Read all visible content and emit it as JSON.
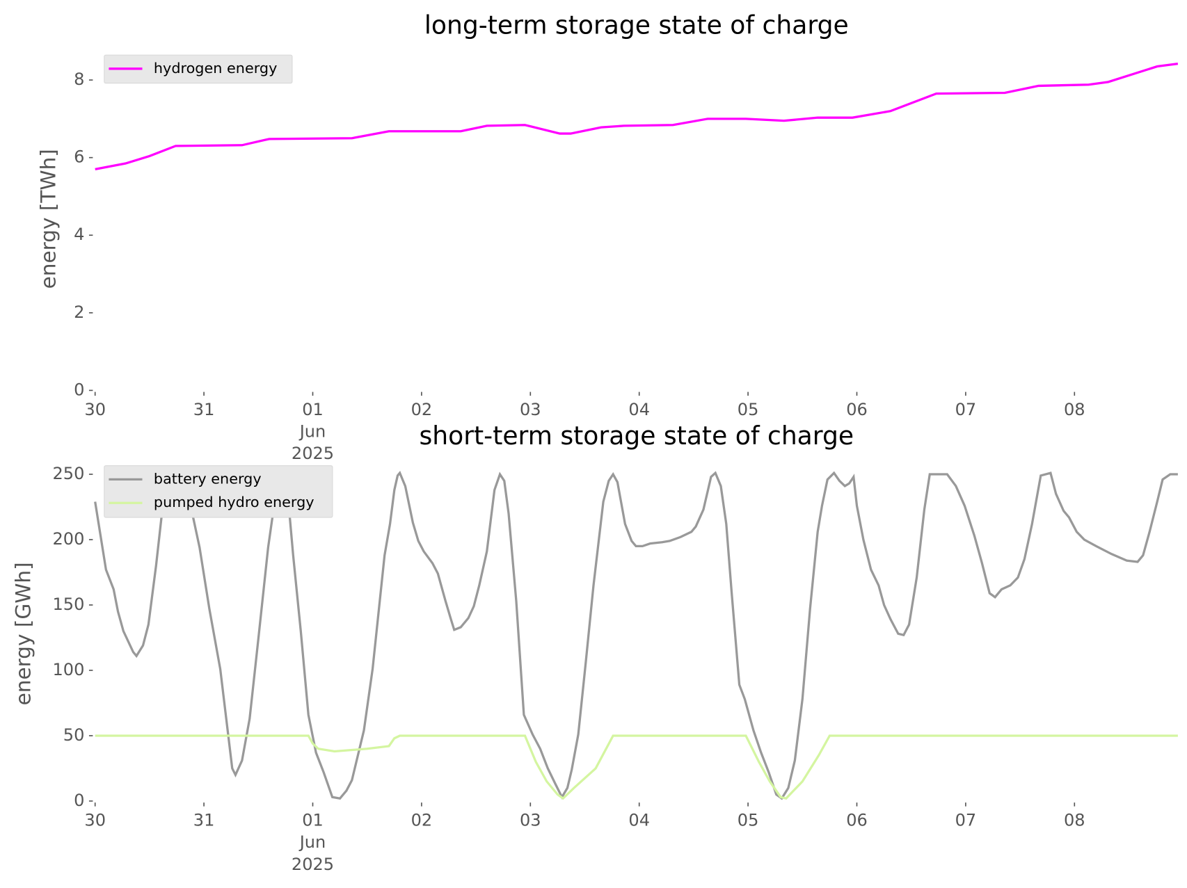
{
  "chart_data": [
    {
      "type": "line",
      "title": "long-term storage state of charge",
      "ylabel": "energy [TWh]",
      "xlim": [
        0,
        9.95
      ],
      "ylim": [
        0,
        8.84
      ],
      "xticks": [
        {
          "value": 0,
          "label": "30"
        },
        {
          "value": 1,
          "label": "31"
        },
        {
          "value": 2,
          "label": "01\nJun\n2025"
        },
        {
          "value": 3,
          "label": "02"
        },
        {
          "value": 4,
          "label": "03"
        },
        {
          "value": 5,
          "label": "04"
        },
        {
          "value": 6,
          "label": "05"
        },
        {
          "value": 7,
          "label": "06"
        },
        {
          "value": 8,
          "label": "07"
        },
        {
          "value": 9,
          "label": "08"
        }
      ],
      "yticks": [
        0,
        2,
        4,
        6,
        8
      ],
      "grid": false,
      "legend": "upper left",
      "series": [
        {
          "name": "hydrogen energy",
          "color": "#ff00ff",
          "x": [
            0,
            0.28,
            0.5,
            0.74,
            1.35,
            1.6,
            2.36,
            2.7,
            3.36,
            3.6,
            3.95,
            4.27,
            4.37,
            4.65,
            4.86,
            5.31,
            5.63,
            5.98,
            6.33,
            6.64,
            6.96,
            7.31,
            7.73,
            8.36,
            8.67,
            9.13,
            9.31,
            9.76,
            9.95
          ],
          "values": [
            5.7,
            5.85,
            6.04,
            6.3,
            6.32,
            6.48,
            6.5,
            6.68,
            6.68,
            6.82,
            6.84,
            6.62,
            6.62,
            6.78,
            6.82,
            6.84,
            7.0,
            7.0,
            6.95,
            7.03,
            7.03,
            7.2,
            7.65,
            7.67,
            7.85,
            7.88,
            7.95,
            8.35,
            8.42
          ]
        }
      ]
    },
    {
      "type": "line",
      "title": "short-term storage state of charge",
      "ylabel": "energy [GWh]",
      "xlim": [
        0,
        9.95
      ],
      "ylim": [
        0,
        256
      ],
      "xticks": [
        {
          "value": 0,
          "label": "30"
        },
        {
          "value": 1,
          "label": "31"
        },
        {
          "value": 2,
          "label": "01\nJun\n2025"
        },
        {
          "value": 3,
          "label": "02"
        },
        {
          "value": 4,
          "label": "03"
        },
        {
          "value": 5,
          "label": "04"
        },
        {
          "value": 6,
          "label": "05"
        },
        {
          "value": 7,
          "label": "06"
        },
        {
          "value": 8,
          "label": "07"
        },
        {
          "value": 9,
          "label": "08"
        }
      ],
      "yticks": [
        0,
        50,
        100,
        150,
        200,
        250
      ],
      "grid": false,
      "legend": "upper left",
      "series": [
        {
          "name": "battery energy",
          "color": "#999999",
          "x": [
            0,
            0.1,
            0.17,
            0.21,
            0.26,
            0.35,
            0.38,
            0.44,
            0.49,
            0.56,
            0.63,
            0.7,
            0.77,
            0.87,
            0.96,
            1.05,
            1.15,
            1.26,
            1.29,
            1.35,
            1.42,
            1.5,
            1.59,
            1.66,
            1.71,
            1.77,
            1.82,
            1.89,
            1.96,
            2.03,
            2.1,
            2.18,
            2.25,
            2.31,
            2.36,
            2.47,
            2.55,
            2.66,
            2.71,
            2.75,
            2.78,
            2.8,
            2.85,
            2.92,
            2.97,
            3.02,
            3.1,
            3.15,
            3.22,
            3.27,
            3.3,
            3.36,
            3.43,
            3.48,
            3.53,
            3.6,
            3.67,
            3.72,
            3.76,
            3.8,
            3.87,
            3.94,
            4.02,
            4.09,
            4.16,
            4.23,
            4.29,
            4.34,
            4.38,
            4.44,
            4.51,
            4.58,
            4.67,
            4.72,
            4.76,
            4.8,
            4.87,
            4.93,
            4.97,
            5.03,
            5.1,
            5.21,
            5.28,
            5.38,
            5.48,
            5.52,
            5.59,
            5.66,
            5.7,
            5.75,
            5.8,
            5.85,
            5.92,
            5.97,
            6.05,
            6.12,
            6.19,
            6.26,
            6.31,
            6.37,
            6.43,
            6.5,
            6.57,
            6.64,
            6.68,
            6.73,
            6.79,
            6.84,
            6.89,
            6.93,
            6.97,
            7.0,
            7.06,
            7.13,
            7.2,
            7.25,
            7.31,
            7.38,
            7.43,
            7.48,
            7.55,
            7.62,
            7.67,
            7.83,
            7.91,
            7.99,
            8.08,
            8.15,
            8.22,
            8.27,
            8.33,
            8.41,
            8.48,
            8.54,
            8.61,
            8.69,
            8.78,
            8.83,
            8.9,
            8.95,
            9.02,
            9.09,
            9.2,
            9.34,
            9.48,
            9.58,
            9.63,
            9.69,
            9.76,
            9.81,
            9.88,
            9.95
          ],
          "values": [
            229,
            177,
            162,
            145,
            130,
            114,
            111,
            119,
            135,
            180,
            232,
            250,
            250,
            229,
            194,
            147,
            101,
            25,
            20,
            31,
            63,
            124,
            194,
            235,
            250,
            235,
            188,
            130,
            66,
            37,
            22,
            3,
            2,
            8,
            16,
            54,
            101,
            188,
            212,
            238,
            249,
            251,
            241,
            213,
            199,
            191,
            182,
            174,
            153,
            139,
            131,
            133,
            140,
            149,
            165,
            191,
            238,
            250,
            245,
            220,
            153,
            66,
            51,
            40,
            25,
            13,
            3,
            10,
            24,
            51,
            107,
            165,
            229,
            245,
            250,
            244,
            212,
            199,
            195,
            195,
            197,
            198,
            199,
            202,
            206,
            210,
            223,
            248,
            251,
            241,
            212,
            159,
            89,
            78,
            54,
            37,
            22,
            5,
            2,
            10,
            31,
            78,
            147,
            206,
            226,
            246,
            251,
            245,
            241,
            243,
            248,
            226,
            200,
            177,
            165,
            150,
            139,
            128,
            127,
            135,
            171,
            223,
            250,
            250,
            241,
            226,
            203,
            182,
            159,
            156,
            162,
            165,
            171,
            185,
            212,
            249,
            251,
            235,
            222,
            217,
            206,
            200,
            195,
            189,
            184,
            183,
            188,
            206,
            229,
            246,
            250,
            250
          ]
        },
        {
          "name": "pumped hydro energy",
          "color": "#d4f5a0",
          "x": [
            0,
            1.96,
            2.0,
            2.05,
            2.2,
            2.5,
            2.7,
            2.75,
            2.8,
            3.95,
            4.05,
            4.15,
            4.25,
            4.3,
            4.4,
            4.6,
            4.76,
            5.98,
            6.1,
            6.2,
            6.3,
            6.35,
            6.5,
            6.65,
            6.75,
            9.95
          ],
          "values": [
            50,
            50,
            44,
            40,
            38,
            40,
            42,
            48,
            50,
            50,
            30,
            15,
            5,
            2,
            10,
            25,
            50,
            50,
            30,
            15,
            3,
            2,
            15,
            35,
            50,
            50
          ]
        }
      ]
    }
  ]
}
